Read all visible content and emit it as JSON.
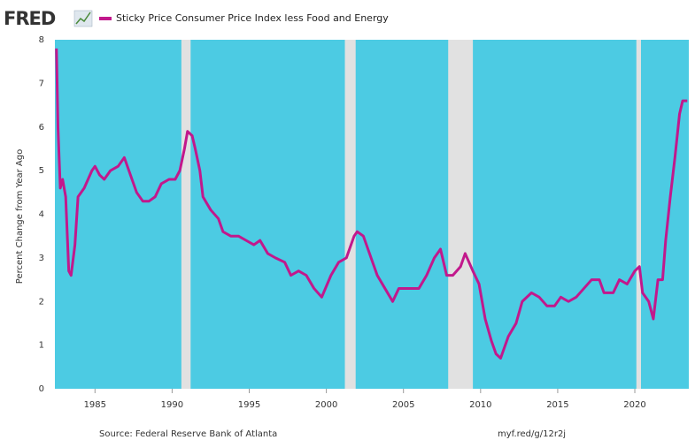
{
  "chart_data": {
    "type": "line",
    "logo": "FRED",
    "ylabel": "Percent Change from Year Ago",
    "source": "Source: Federal Reserve Bank of Atlanta",
    "link": "myf.red/g/12r2j",
    "background_color": "#4ccbe3",
    "shaded_color": "#e1e1e1",
    "shaded_periods": [
      [
        1990.6,
        1991.2
      ],
      [
        2001.2,
        2001.9
      ],
      [
        2007.9,
        2009.5
      ],
      [
        2020.1,
        2020.4
      ]
    ],
    "xlim": [
      1982.4,
      2023.5
    ],
    "xticks": [
      1985,
      1990,
      1995,
      2000,
      2005,
      2010,
      2015,
      2020
    ],
    "ylim": [
      0,
      8
    ],
    "yticks": [
      0,
      1,
      2,
      3,
      4,
      5,
      6,
      7,
      8
    ],
    "grid": false,
    "x": [
      1982.5,
      1982.6,
      1982.75,
      1982.9,
      1983.1,
      1983.3,
      1983.45,
      1983.7,
      1983.9,
      1984.3,
      1984.8,
      1985.0,
      1985.3,
      1985.6,
      1986.0,
      1986.5,
      1986.9,
      1987.3,
      1987.7,
      1988.1,
      1988.5,
      1988.9,
      1989.3,
      1989.8,
      1990.2,
      1990.5,
      1990.8,
      1991.0,
      1991.3,
      1991.5,
      1991.8,
      1992.0,
      1992.5,
      1993.0,
      1993.3,
      1993.8,
      1994.3,
      1994.8,
      1995.3,
      1995.7,
      1996.2,
      1996.7,
      1997.3,
      1997.7,
      1998.2,
      1998.7,
      1999.2,
      1999.7,
      2000.3,
      2000.8,
      2001.3,
      2001.8,
      2002.0,
      2002.4,
      2002.8,
      2003.3,
      2003.8,
      2004.3,
      2004.7,
      2005.3,
      2006.0,
      2006.5,
      2007.0,
      2007.4,
      2007.8,
      2008.2,
      2008.7,
      2009.0,
      2009.5,
      2009.9,
      2010.3,
      2010.7,
      2011.0,
      2011.3,
      2011.8,
      2012.3,
      2012.7,
      2013.3,
      2013.8,
      2014.3,
      2014.8,
      2015.2,
      2015.7,
      2016.2,
      2016.7,
      2017.2,
      2017.7,
      2018.0,
      2018.6,
      2019.0,
      2019.5,
      2020.0,
      2020.3,
      2020.5,
      2020.9,
      2021.2,
      2021.5,
      2021.8,
      2022.0,
      2022.3,
      2022.6,
      2022.9,
      2023.1,
      2023.4
    ],
    "series": [
      {
        "name": "Sticky Price Consumer Price Index less Food and Energy",
        "color": "#c2188c",
        "values": [
          7.8,
          6.0,
          4.6,
          4.8,
          4.4,
          2.7,
          2.6,
          3.3,
          4.4,
          4.6,
          5.0,
          5.1,
          4.9,
          4.8,
          5.0,
          5.1,
          5.3,
          4.9,
          4.5,
          4.3,
          4.3,
          4.4,
          4.7,
          4.8,
          4.8,
          5.0,
          5.5,
          5.9,
          5.8,
          5.5,
          5.0,
          4.4,
          4.1,
          3.9,
          3.6,
          3.5,
          3.5,
          3.4,
          3.3,
          3.4,
          3.1,
          3.0,
          2.9,
          2.6,
          2.7,
          2.6,
          2.3,
          2.1,
          2.6,
          2.9,
          3.0,
          3.5,
          3.6,
          3.5,
          3.1,
          2.6,
          2.3,
          2.0,
          2.3,
          2.3,
          2.3,
          2.6,
          3.0,
          3.2,
          2.6,
          2.6,
          2.8,
          3.1,
          2.7,
          2.4,
          1.6,
          1.1,
          0.8,
          0.7,
          1.2,
          1.5,
          2.0,
          2.2,
          2.1,
          1.9,
          1.9,
          2.1,
          2.0,
          2.1,
          2.3,
          2.5,
          2.5,
          2.2,
          2.2,
          2.5,
          2.4,
          2.7,
          2.8,
          2.2,
          2.0,
          1.6,
          2.5,
          2.5,
          3.4,
          4.4,
          5.3,
          6.3,
          6.6,
          6.6
        ]
      }
    ]
  }
}
